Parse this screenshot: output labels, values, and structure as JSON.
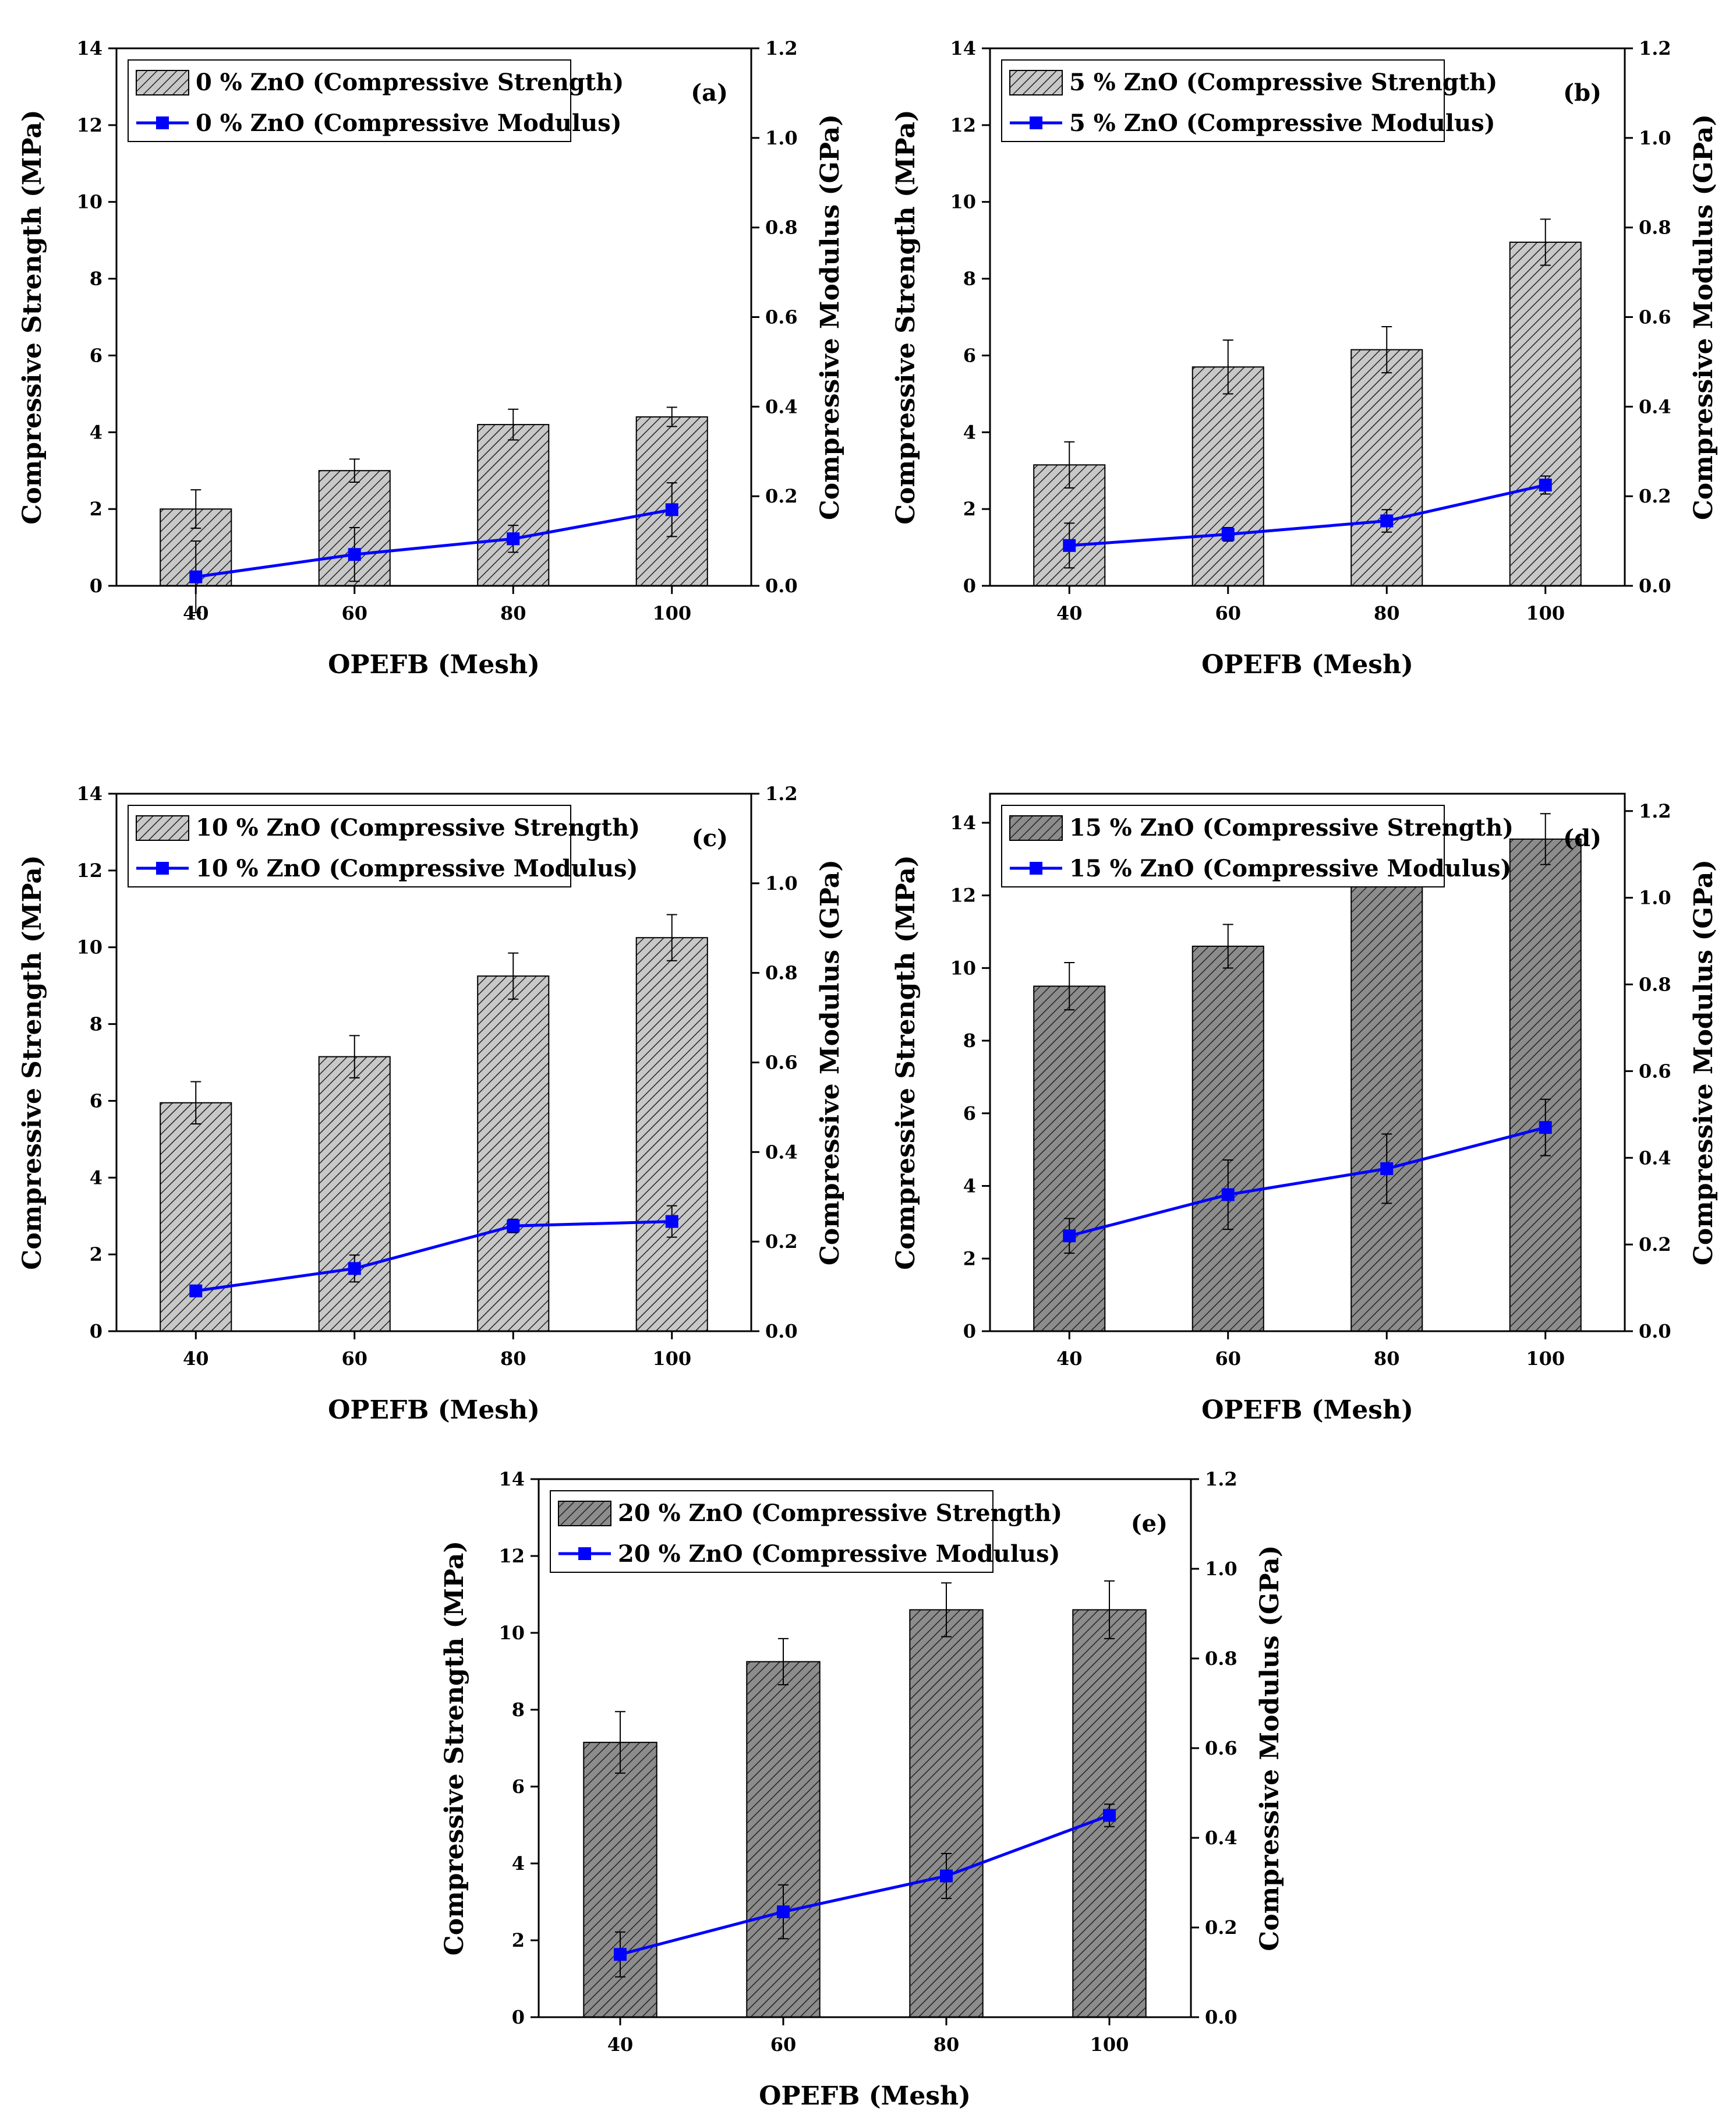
{
  "colors": {
    "bar_light": "#c8c8c8",
    "bar_dark": "#8c8c8c",
    "hatch": "#222222",
    "line": "#0000ff",
    "axis": "#000000"
  },
  "chart_data": [
    {
      "type": "bar",
      "panel_label": "(a)",
      "categories": [
        "40",
        "60",
        "80",
        "100"
      ],
      "xlabel": "OPEFB (Mesh)",
      "ylabel": "Compressive Strength (MPa)",
      "y2label": "Compressive Modulus (GPa)",
      "ylim": [
        0,
        14
      ],
      "y2lim": [
        0,
        1.2
      ],
      "yticks": [
        "0",
        "2",
        "4",
        "6",
        "8",
        "10",
        "12",
        "14"
      ],
      "y2ticks": [
        "0.0",
        "0.2",
        "0.4",
        "0.6",
        "0.8",
        "1.0",
        "1.2"
      ],
      "bar_shade": "light",
      "series": [
        {
          "name": "0 % ZnO (Compressive Strength)",
          "kind": "bar",
          "values": [
            2.0,
            3.0,
            4.2,
            4.4
          ],
          "errors": [
            0.5,
            0.3,
            0.4,
            0.25
          ]
        },
        {
          "name": "0 % ZnO (Compressive Modulus)",
          "kind": "line",
          "values": [
            0.02,
            0.07,
            0.105,
            0.17
          ],
          "errors": [
            0.08,
            0.06,
            0.03,
            0.06
          ]
        }
      ]
    },
    {
      "type": "bar",
      "panel_label": "(b)",
      "categories": [
        "40",
        "60",
        "80",
        "100"
      ],
      "xlabel": "OPEFB (Mesh)",
      "ylabel": "Compressive Strength (MPa)",
      "y2label": "Compressive Modulus (GPa)",
      "ylim": [
        0,
        14
      ],
      "y2lim": [
        0,
        1.2
      ],
      "yticks": [
        "0",
        "2",
        "4",
        "6",
        "8",
        "10",
        "12",
        "14"
      ],
      "y2ticks": [
        "0.0",
        "0.2",
        "0.4",
        "0.6",
        "0.8",
        "1.0",
        "1.2"
      ],
      "bar_shade": "light",
      "series": [
        {
          "name": "5 % ZnO (Compressive Strength)",
          "kind": "bar",
          "values": [
            3.15,
            5.7,
            6.15,
            8.95
          ],
          "errors": [
            0.6,
            0.7,
            0.6,
            0.6
          ]
        },
        {
          "name": "5 % ZnO (Compressive Modulus)",
          "kind": "line",
          "values": [
            0.09,
            0.115,
            0.145,
            0.225
          ],
          "errors": [
            0.05,
            0.015,
            0.025,
            0.02
          ]
        }
      ]
    },
    {
      "type": "bar",
      "panel_label": "(c)",
      "categories": [
        "40",
        "60",
        "80",
        "100"
      ],
      "xlabel": "OPEFB (Mesh)",
      "ylabel": "Compressive Strength (MPa)",
      "y2label": "Compressive Modulus (GPa)",
      "ylim": [
        0,
        14
      ],
      "y2lim": [
        0,
        1.2
      ],
      "yticks": [
        "0",
        "2",
        "4",
        "6",
        "8",
        "10",
        "12",
        "14"
      ],
      "y2ticks": [
        "0.0",
        "0.2",
        "0.4",
        "0.6",
        "0.8",
        "1.0",
        "1.2"
      ],
      "bar_shade": "light",
      "series": [
        {
          "name": "10 % ZnO (Compressive Strength)",
          "kind": "bar",
          "values": [
            5.95,
            7.15,
            9.25,
            10.25
          ],
          "errors": [
            0.55,
            0.55,
            0.6,
            0.6
          ]
        },
        {
          "name": "10 % ZnO (Compressive Modulus)",
          "kind": "line",
          "values": [
            0.09,
            0.14,
            0.235,
            0.245
          ],
          "errors": [
            0.01,
            0.03,
            0.015,
            0.035
          ]
        }
      ]
    },
    {
      "type": "bar",
      "panel_label": "(d)",
      "categories": [
        "40",
        "60",
        "80",
        "100"
      ],
      "xlabel": "OPEFB (Mesh)",
      "ylabel": "Compressive Strength (MPa)",
      "y2label": "Compressive Modulus (GPa)",
      "ylim": [
        0,
        14.8
      ],
      "y2lim": [
        0,
        1.24
      ],
      "yticks": [
        "0",
        "2",
        "4",
        "6",
        "8",
        "10",
        "12",
        "14"
      ],
      "y2ticks": [
        "0.0",
        "0.2",
        "0.4",
        "0.6",
        "0.8",
        "1.0",
        "1.2"
      ],
      "bar_shade": "dark",
      "series": [
        {
          "name": "15 % ZnO (Compressive Strength)",
          "kind": "bar",
          "values": [
            9.5,
            10.6,
            13.0,
            13.55
          ],
          "errors": [
            0.65,
            0.6,
            0.75,
            0.7
          ]
        },
        {
          "name": "15 % ZnO (Compressive Modulus)",
          "kind": "line",
          "values": [
            0.22,
            0.315,
            0.375,
            0.47
          ],
          "errors": [
            0.04,
            0.08,
            0.08,
            0.065
          ]
        }
      ]
    },
    {
      "type": "bar",
      "panel_label": "(e)",
      "categories": [
        "40",
        "60",
        "80",
        "100"
      ],
      "xlabel": "OPEFB (Mesh)",
      "ylabel": "Compressive Strength (MPa)",
      "y2label": "Compressive Modulus (GPa)",
      "ylim": [
        0,
        14
      ],
      "y2lim": [
        0,
        1.2
      ],
      "yticks": [
        "0",
        "2",
        "4",
        "6",
        "8",
        "10",
        "12",
        "14"
      ],
      "y2ticks": [
        "0.0",
        "0.2",
        "0.4",
        "0.6",
        "0.8",
        "1.0",
        "1.2"
      ],
      "bar_shade": "dark",
      "series": [
        {
          "name": "20 % ZnO (Compressive Strength)",
          "kind": "bar",
          "values": [
            7.15,
            9.25,
            10.6,
            10.6
          ],
          "errors": [
            0.8,
            0.6,
            0.7,
            0.75
          ]
        },
        {
          "name": "20 % ZnO (Compressive Modulus)",
          "kind": "line",
          "values": [
            0.14,
            0.235,
            0.315,
            0.45
          ],
          "errors": [
            0.05,
            0.06,
            0.05,
            0.025
          ]
        }
      ]
    }
  ]
}
